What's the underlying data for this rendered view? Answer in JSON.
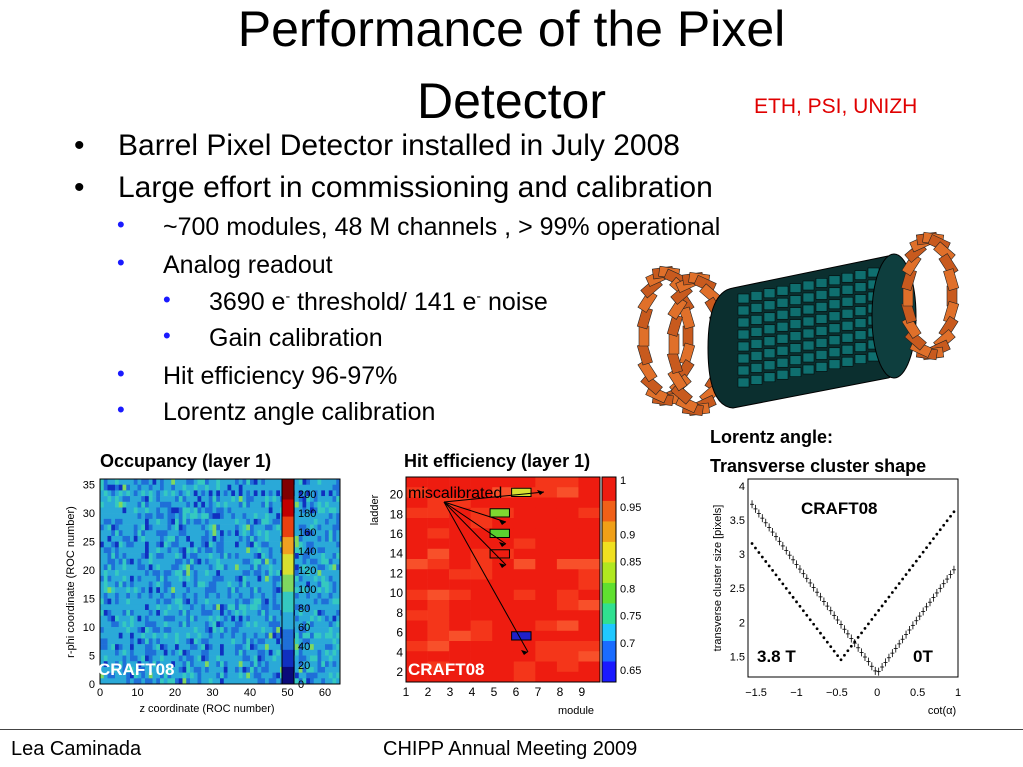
{
  "title": {
    "line1": "Performance of the Pixel",
    "line2": "Detector"
  },
  "affiliation": "ETH, PSI, UNIZH",
  "bullets": {
    "b1": "Barrel Pixel Detector installed in July 2008",
    "b2": "Large effort in commissioning and calibration",
    "s1": "~700 modules, 48 M channels , > 99% operational",
    "s2": "Analog readout",
    "t1_a": "3690 e",
    "t1_sup1": "-",
    "t1_b": " threshold/ 141 e",
    "t1_sup2": "-",
    "t1_c": " noise",
    "t2": "Gain calibration",
    "s3": "Hit efficiency 96-97%",
    "s4": "Lorentz angle calibration"
  },
  "plot1": {
    "caption": "Occupancy (layer 1)",
    "ylabel": "r-phi coordinate (ROC number)",
    "xlabel": "z coordinate (ROC number)",
    "stamp": "CRAFT08",
    "xticks": [
      "0",
      "10",
      "20",
      "30",
      "40",
      "50",
      "60"
    ],
    "yticks": [
      "0",
      "5",
      "10",
      "15",
      "20",
      "25",
      "30",
      "35"
    ],
    "zticks": [
      "0",
      "20",
      "40",
      "60",
      "80",
      "100",
      "120",
      "140",
      "160",
      "180",
      "200"
    ]
  },
  "plot2": {
    "caption": "Hit efficiency (layer 1)",
    "ylabel": "ladder",
    "xlabel": "module",
    "annotation": "miscalibrated",
    "stamp": "CRAFT08",
    "xticks": [
      "1",
      "2",
      "3",
      "4",
      "5",
      "6",
      "7",
      "8",
      "9"
    ],
    "yticks": [
      "2",
      "4",
      "6",
      "8",
      "10",
      "12",
      "14",
      "16",
      "18",
      "20"
    ],
    "zticks": [
      "0.65",
      "0.7",
      "0.75",
      "0.8",
      "0.85",
      "0.9",
      "0.95",
      "1"
    ]
  },
  "plot3": {
    "caption_line1": "Lorentz angle:",
    "caption_line2": "Transverse cluster shape",
    "ylabel": "transverse cluster size [pixels]",
    "xlabel": "cot(α)",
    "label_run": "CRAFT08",
    "label_left": "3.8 T",
    "label_right": "0T",
    "xticks": [
      "−1.5",
      "−1",
      "−0.5",
      "0",
      "0.5",
      "1"
    ],
    "yticks": [
      "1.5",
      "2",
      "2.5",
      "3",
      "3.5",
      "4"
    ]
  },
  "footer": {
    "author": "Lea Caminada",
    "event": "CHIPP Annual Meeting 2009"
  },
  "colors": {
    "affiliation": "#e00000",
    "bullet_dot": "#1a1aff",
    "stamp": "#ffffff"
  }
}
